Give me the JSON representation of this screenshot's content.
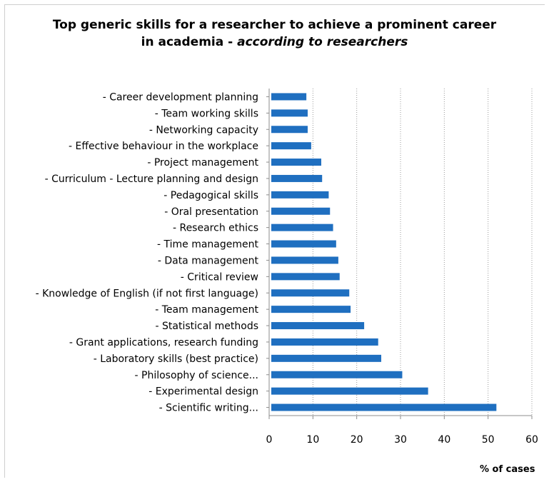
{
  "chart_data": {
    "type": "bar",
    "orientation": "horizontal",
    "title_line1": "Top  generic skills for a researcher to achieve a prominent career",
    "title_line2_prefix": "in academia - ",
    "title_line2_italic": "according to researchers",
    "xlabel": "% of cases",
    "ylabel": "",
    "xlim": [
      0,
      60
    ],
    "xticks": [
      0,
      10,
      20,
      30,
      40,
      50,
      60
    ],
    "grid": "vertical-dotted",
    "bar_color": "#1f6fc0",
    "categories": [
      "- Career development planning",
      "- Team working skills",
      "- Networking capacity",
      "- Effective behaviour in the workplace",
      "- Project management",
      "- Curriculum - Lecture planning and design",
      "- Pedagogical skills",
      "- Oral presentation",
      "- Research ethics",
      "- Time management",
      "- Data management",
      "- Critical review",
      "- Knowledge of English (if not first language)",
      "- Team management",
      "- Statistical methods",
      "- Grant applications, research funding",
      "- Laboratory skills (best practice)",
      "- Philosophy of science...",
      "- Experimental design",
      "- Scientific writing..."
    ],
    "values": [
      8.5,
      8.8,
      8.8,
      9.6,
      11.9,
      12.1,
      13.6,
      13.9,
      14.6,
      15.3,
      15.8,
      16.1,
      18.3,
      18.6,
      21.7,
      24.9,
      25.6,
      30.4,
      36.3,
      51.9
    ]
  }
}
